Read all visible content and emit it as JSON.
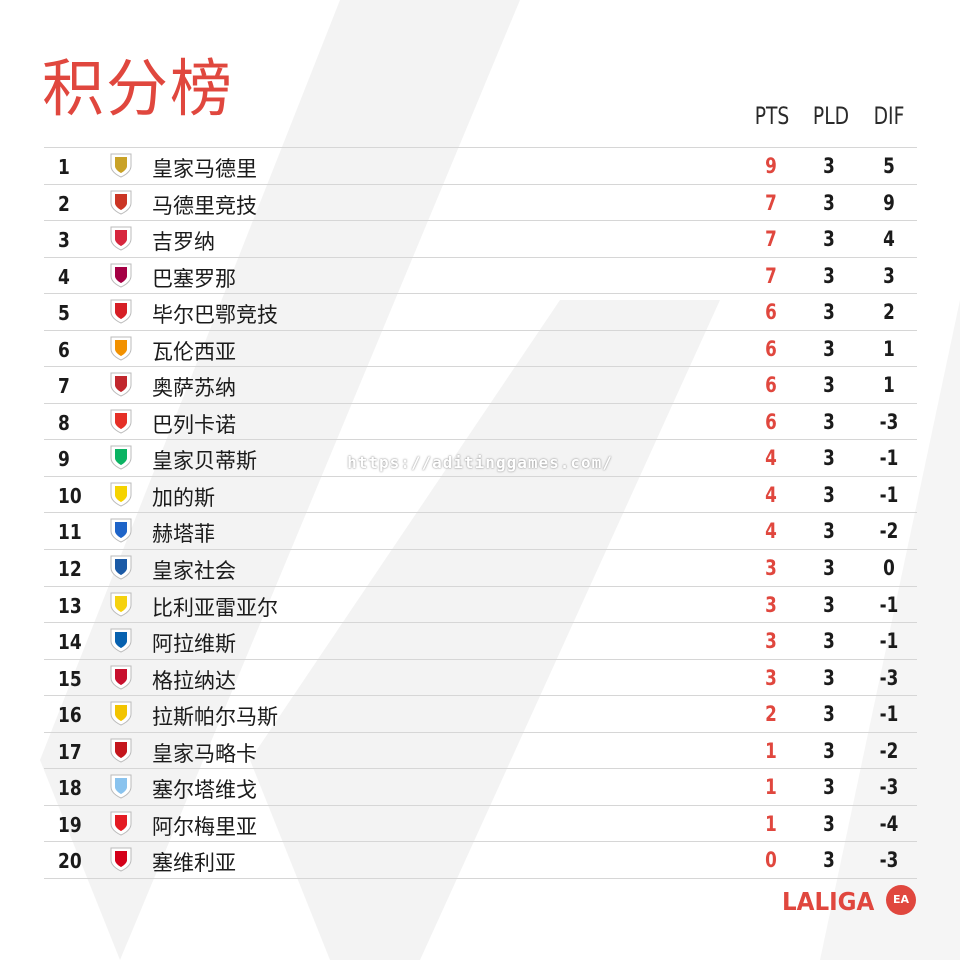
{
  "title": "积分榜",
  "columns": {
    "pts": "PTS",
    "pld": "PLD",
    "dif": "DIF"
  },
  "rows": [
    {
      "pos": "1",
      "team": "皇家马德里",
      "pts": "9",
      "pld": "3",
      "dif": "5",
      "crest_icon": "real-madrid-crest-icon",
      "crest_color": "#c9a227"
    },
    {
      "pos": "2",
      "team": "马德里竞技",
      "pts": "7",
      "pld": "3",
      "dif": "9",
      "crest_icon": "atletico-madrid-crest-icon",
      "crest_color": "#cb3524"
    },
    {
      "pos": "3",
      "team": "吉罗纳",
      "pts": "7",
      "pld": "3",
      "dif": "4",
      "crest_icon": "girona-crest-icon",
      "crest_color": "#d7263d"
    },
    {
      "pos": "4",
      "team": "巴塞罗那",
      "pts": "7",
      "pld": "3",
      "dif": "3",
      "crest_icon": "barcelona-crest-icon",
      "crest_color": "#a50044"
    },
    {
      "pos": "5",
      "team": "毕尔巴鄂竞技",
      "pts": "6",
      "pld": "3",
      "dif": "2",
      "crest_icon": "athletic-bilbao-crest-icon",
      "crest_color": "#d61f26"
    },
    {
      "pos": "6",
      "team": "瓦伦西亚",
      "pts": "6",
      "pld": "3",
      "dif": "1",
      "crest_icon": "valencia-crest-icon",
      "crest_color": "#f29100"
    },
    {
      "pos": "7",
      "team": "奥萨苏纳",
      "pts": "6",
      "pld": "3",
      "dif": "1",
      "crest_icon": "osasuna-crest-icon",
      "crest_color": "#c1272d"
    },
    {
      "pos": "8",
      "team": "巴列卡诺",
      "pts": "6",
      "pld": "3",
      "dif": "-3",
      "crest_icon": "rayo-vallecano-crest-icon",
      "crest_color": "#e53027"
    },
    {
      "pos": "9",
      "team": "皇家贝蒂斯",
      "pts": "4",
      "pld": "3",
      "dif": "-1",
      "crest_icon": "real-betis-crest-icon",
      "crest_color": "#0bb363"
    },
    {
      "pos": "10",
      "team": "加的斯",
      "pts": "4",
      "pld": "3",
      "dif": "-1",
      "crest_icon": "cadiz-crest-icon",
      "crest_color": "#f5d300"
    },
    {
      "pos": "11",
      "team": "赫塔菲",
      "pts": "4",
      "pld": "3",
      "dif": "-2",
      "crest_icon": "getafe-crest-icon",
      "crest_color": "#1e64c8"
    },
    {
      "pos": "12",
      "team": "皇家社会",
      "pts": "3",
      "pld": "3",
      "dif": "0",
      "crest_icon": "real-sociedad-crest-icon",
      "crest_color": "#1b5aa6"
    },
    {
      "pos": "13",
      "team": "比利亚雷亚尔",
      "pts": "3",
      "pld": "3",
      "dif": "-1",
      "crest_icon": "villarreal-crest-icon",
      "crest_color": "#f5d20f"
    },
    {
      "pos": "14",
      "team": "阿拉维斯",
      "pts": "3",
      "pld": "3",
      "dif": "-1",
      "crest_icon": "alaves-crest-icon",
      "crest_color": "#0761af"
    },
    {
      "pos": "15",
      "team": "格拉纳达",
      "pts": "3",
      "pld": "3",
      "dif": "-3",
      "crest_icon": "granada-crest-icon",
      "crest_color": "#c8102e"
    },
    {
      "pos": "16",
      "team": "拉斯帕尔马斯",
      "pts": "2",
      "pld": "3",
      "dif": "-1",
      "crest_icon": "las-palmas-crest-icon",
      "crest_color": "#f2c400"
    },
    {
      "pos": "17",
      "team": "皇家马略卡",
      "pts": "1",
      "pld": "3",
      "dif": "-2",
      "crest_icon": "mallorca-crest-icon",
      "crest_color": "#c4161c"
    },
    {
      "pos": "18",
      "team": "塞尔塔维戈",
      "pts": "1",
      "pld": "3",
      "dif": "-3",
      "crest_icon": "celta-vigo-crest-icon",
      "crest_color": "#8ac3ee"
    },
    {
      "pos": "19",
      "team": "阿尔梅里亚",
      "pts": "1",
      "pld": "3",
      "dif": "-4",
      "crest_icon": "almeria-crest-icon",
      "crest_color": "#e41b23"
    },
    {
      "pos": "20",
      "team": "塞维利亚",
      "pts": "0",
      "pld": "3",
      "dif": "-3",
      "crest_icon": "sevilla-crest-icon",
      "crest_color": "#d4001a"
    }
  ],
  "watermark": "https://aditinggames.com/",
  "logo": {
    "text": "LALIGA",
    "badge": "EA"
  },
  "colors": {
    "accent": "#e0473e",
    "text": "#1b1b1b",
    "divider": "#d6d6d6",
    "background": "#ffffff"
  }
}
